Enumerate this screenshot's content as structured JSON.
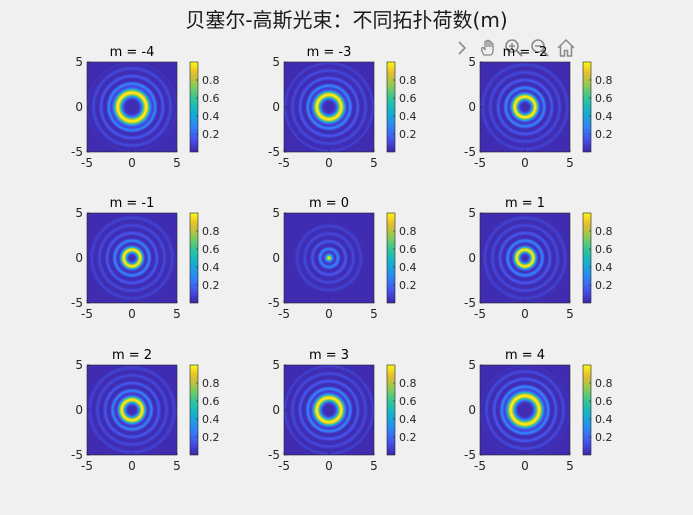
{
  "figure": {
    "title": "贝塞尔-高斯光束：不同拓扑荷数(m)"
  },
  "toolbar": {
    "icons": [
      "expand-arrow-icon",
      "pan-hand-icon",
      "zoom-in-icon",
      "zoom-out-icon",
      "home-icon"
    ]
  },
  "colorbar": {
    "colormap": "parula",
    "ticks": [
      "0.2",
      "0.4",
      "0.6",
      "0.8"
    ],
    "tick_values": [
      0.2,
      0.4,
      0.6,
      0.8
    ]
  },
  "chart_data": [
    {
      "type": "heatmap",
      "title": "m = -4",
      "m": -4,
      "xlim": [
        -5,
        5
      ],
      "ylim": [
        -5,
        5
      ],
      "xticks": [
        "-5",
        "0",
        "5"
      ],
      "yticks": [
        "5",
        "0",
        "-5"
      ],
      "clim": [
        0,
        1
      ]
    },
    {
      "type": "heatmap",
      "title": "m = -3",
      "m": -3,
      "xlim": [
        -5,
        5
      ],
      "ylim": [
        -5,
        5
      ],
      "xticks": [
        "-5",
        "0",
        "5"
      ],
      "yticks": [
        "5",
        "0",
        "-5"
      ],
      "clim": [
        0,
        1
      ]
    },
    {
      "type": "heatmap",
      "title": "m = -2",
      "m": -2,
      "xlim": [
        -5,
        5
      ],
      "ylim": [
        -5,
        5
      ],
      "xticks": [
        "-5",
        "0",
        "5"
      ],
      "yticks": [
        "5",
        "0",
        "-5"
      ],
      "clim": [
        0,
        1
      ]
    },
    {
      "type": "heatmap",
      "title": "m = -1",
      "m": -1,
      "xlim": [
        -5,
        5
      ],
      "ylim": [
        -5,
        5
      ],
      "xticks": [
        "-5",
        "0",
        "5"
      ],
      "yticks": [
        "5",
        "0",
        "-5"
      ],
      "clim": [
        0,
        1
      ]
    },
    {
      "type": "heatmap",
      "title": "m = 0",
      "m": 0,
      "xlim": [
        -5,
        5
      ],
      "ylim": [
        -5,
        5
      ],
      "xticks": [
        "-5",
        "0",
        "5"
      ],
      "yticks": [
        "5",
        "0",
        "-5"
      ],
      "clim": [
        0,
        1
      ]
    },
    {
      "type": "heatmap",
      "title": "m = 1",
      "m": 1,
      "xlim": [
        -5,
        5
      ],
      "ylim": [
        -5,
        5
      ],
      "xticks": [
        "-5",
        "0",
        "5"
      ],
      "yticks": [
        "5",
        "0",
        "-5"
      ],
      "clim": [
        0,
        1
      ]
    },
    {
      "type": "heatmap",
      "title": "m = 2",
      "m": 2,
      "xlim": [
        -5,
        5
      ],
      "ylim": [
        -5,
        5
      ],
      "xticks": [
        "-5",
        "0",
        "5"
      ],
      "yticks": [
        "5",
        "0",
        "-5"
      ],
      "clim": [
        0,
        1
      ]
    },
    {
      "type": "heatmap",
      "title": "m = 3",
      "m": 3,
      "xlim": [
        -5,
        5
      ],
      "ylim": [
        -5,
        5
      ],
      "xticks": [
        "-5",
        "0",
        "5"
      ],
      "yticks": [
        "5",
        "0",
        "-5"
      ],
      "clim": [
        0,
        1
      ]
    },
    {
      "type": "heatmap",
      "title": "m = 4",
      "m": 4,
      "xlim": [
        -5,
        5
      ],
      "ylim": [
        -5,
        5
      ],
      "xticks": [
        "-5",
        "0",
        "5"
      ],
      "yticks": [
        "5",
        "0",
        "-5"
      ],
      "clim": [
        0,
        1
      ]
    }
  ]
}
